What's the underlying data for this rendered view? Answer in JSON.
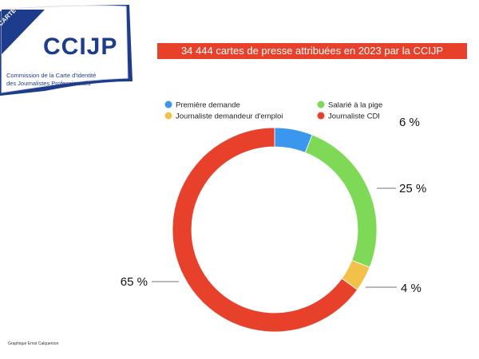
{
  "logo": {
    "stamp_text": "CARTE de PRESSE",
    "brand": "CCIJP",
    "line1": "Commission de la Carte d'Identité",
    "line2": "des Journalistes Professionnels"
  },
  "banner_title": "34 444 cartes de presse attribuées en 2023 par la CCIJP",
  "credit": "Graphique Ernst Calquerson",
  "colors": {
    "premiere": "#3b97ee",
    "salarie": "#7ed957",
    "demandeur": "#f2c14a",
    "cdi": "#e8412b",
    "banner": "#e8412b",
    "logo_blue": "#1e3c8c"
  },
  "chart_data": {
    "type": "pie",
    "donut": true,
    "title": "34 444 cartes de presse attribuées en 2023 par la CCIJP",
    "legend_position": "top",
    "series": [
      {
        "name": "Première demande",
        "value": 6,
        "label": "6 %",
        "color": "#3b97ee"
      },
      {
        "name": "Salarié à la pige",
        "value": 25,
        "label": "25 %",
        "color": "#7ed957"
      },
      {
        "name": "Journaliste demandeur d'emploi",
        "value": 4,
        "label": "4 %",
        "color": "#f2c14a"
      },
      {
        "name": "Journaliste CDI",
        "value": 65,
        "label": "65 %",
        "color": "#e8412b"
      }
    ]
  }
}
